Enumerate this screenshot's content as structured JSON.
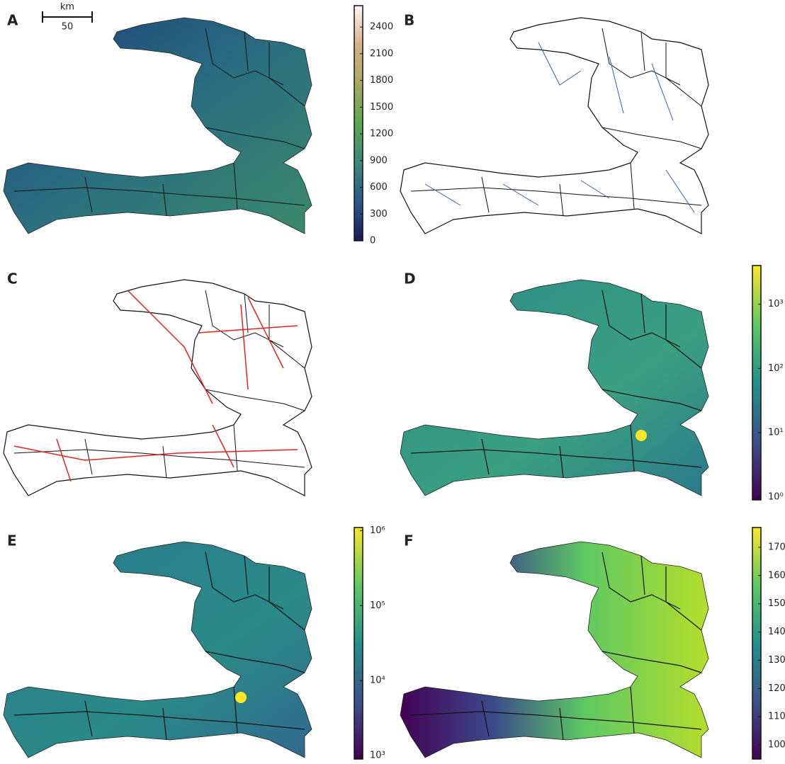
{
  "scale_bar": {
    "unit": "km",
    "length": "50"
  },
  "panels": [
    {
      "label": "A",
      "colorbar": {
        "lim": [
          0,
          2640
        ],
        "log": false,
        "colors": [
          "#1a1a55",
          "#2a5a8a",
          "#3a8a7a",
          "#5aa850",
          "#a8a860",
          "#d8b088",
          "#fff8f8"
        ],
        "ticks": [
          0,
          300,
          600,
          900,
          1200,
          1500,
          1800,
          2100,
          2400
        ]
      }
    },
    {
      "label": "B"
    },
    {
      "label": "C"
    },
    {
      "label": "D",
      "colorbar": {
        "lim": [
          0.9,
          4000
        ],
        "log": true,
        "colors": [
          "#440154",
          "#3b528b",
          "#21918c",
          "#5ec962",
          "#fde725"
        ],
        "ticks": [
          {
            "value": 1,
            "label": "10⁰"
          },
          {
            "value": 10,
            "label": "10¹"
          },
          {
            "value": 100,
            "label": "10²"
          },
          {
            "value": 1000,
            "label": "10³"
          }
        ]
      }
    },
    {
      "label": "E",
      "colorbar": {
        "lim": [
          900,
          1100000
        ],
        "log": true,
        "colors": [
          "#440154",
          "#3b528b",
          "#21918c",
          "#5ec962",
          "#fde725"
        ],
        "ticks": [
          {
            "value": 1000,
            "label": "10³"
          },
          {
            "value": 10000,
            "label": "10⁴"
          },
          {
            "value": 100000,
            "label": "10⁵"
          },
          {
            "value": 1000000,
            "label": "10⁶"
          }
        ]
      }
    },
    {
      "label": "F",
      "colorbar": {
        "lim": [
          95,
          177
        ],
        "log": false,
        "colors": [
          "#440154",
          "#3b528b",
          "#21918c",
          "#5ec962",
          "#fde725"
        ],
        "ticks": [
          100,
          110,
          120,
          130,
          140,
          150,
          160,
          170
        ]
      }
    }
  ]
}
